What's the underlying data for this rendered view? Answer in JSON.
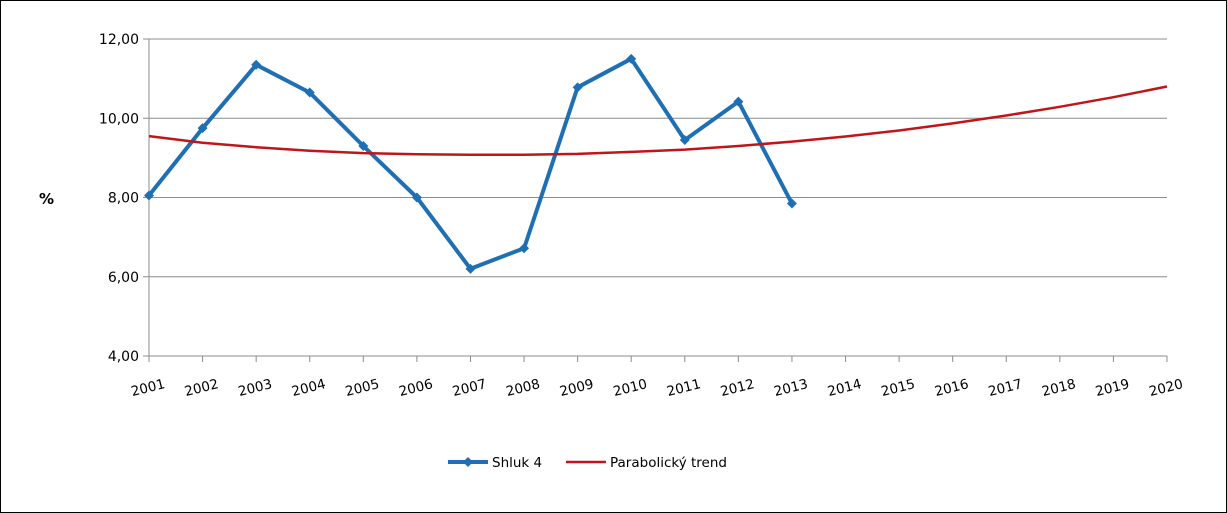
{
  "chart_data": {
    "type": "line",
    "ylabel": "%",
    "xlabel": "",
    "ylim": [
      4,
      12
    ],
    "yticks": [
      "4,00",
      "6,00",
      "8,00",
      "10,00",
      "12,00"
    ],
    "categories": [
      "2001",
      "2002",
      "2003",
      "2004",
      "2005",
      "2006",
      "2007",
      "2008",
      "2009",
      "2010",
      "2011",
      "2012",
      "2013",
      "2014",
      "2015",
      "2016",
      "2017",
      "2018",
      "2019",
      "2020"
    ],
    "grid": true,
    "legend_position": "bottom",
    "series": [
      {
        "name": "Shluk 4",
        "color": "#1f6fb4",
        "marker": "diamond",
        "values": [
          8.05,
          9.75,
          11.35,
          10.65,
          9.3,
          8.0,
          6.2,
          6.72,
          10.78,
          11.5,
          9.45,
          10.42,
          7.85,
          null,
          null,
          null,
          null,
          null,
          null,
          null
        ]
      },
      {
        "name": "Parabolický trend",
        "color": "#c0161a",
        "marker": "none",
        "values": [
          9.55,
          9.38,
          9.27,
          9.18,
          9.12,
          9.09,
          9.08,
          9.08,
          9.1,
          9.15,
          9.21,
          9.3,
          9.41,
          9.54,
          9.69,
          9.87,
          10.07,
          10.29,
          10.53,
          10.8
        ]
      }
    ]
  }
}
